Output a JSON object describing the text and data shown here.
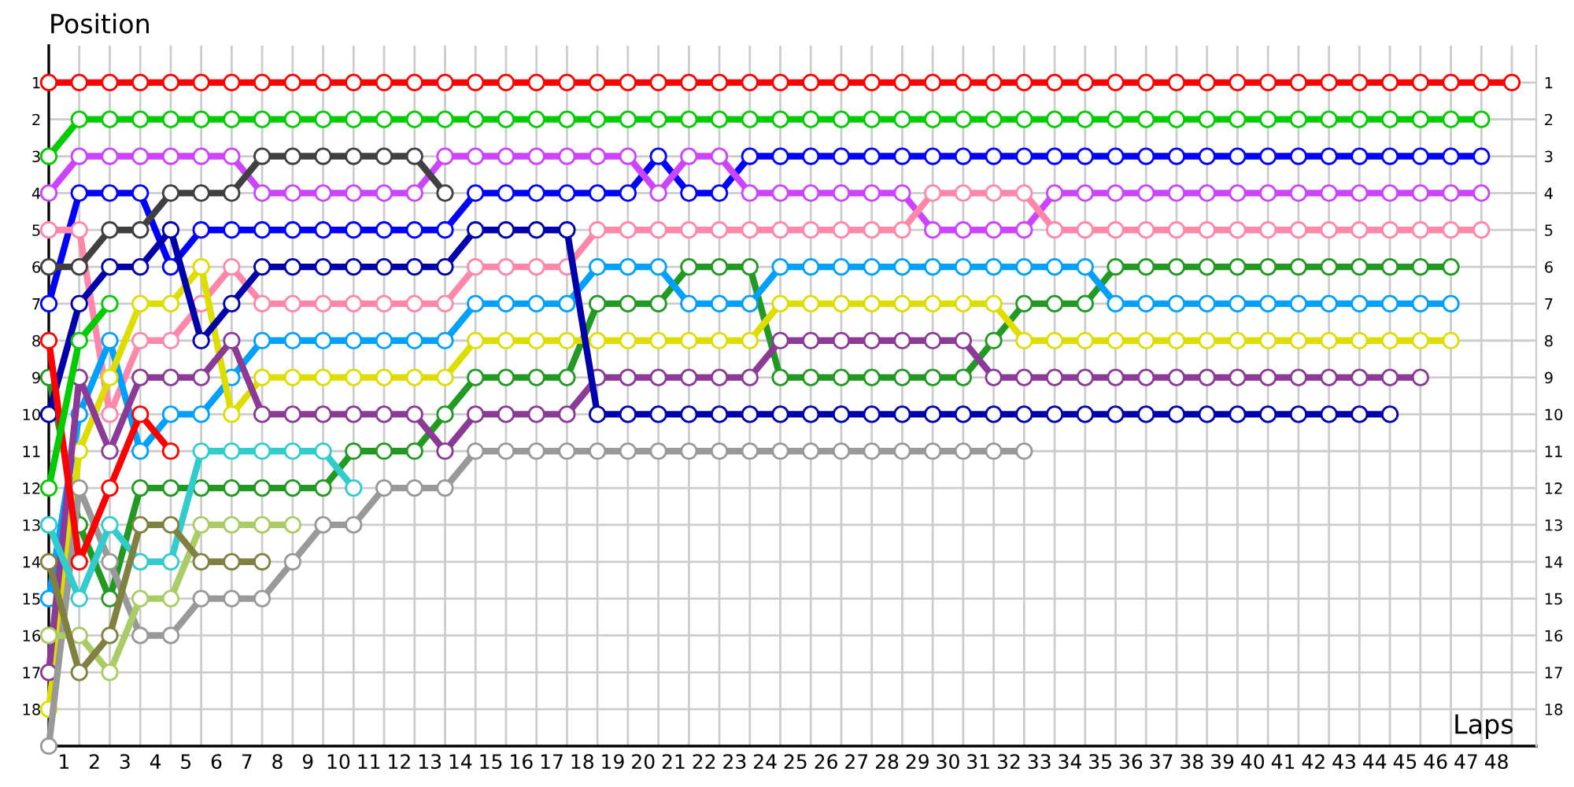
{
  "chart_data": {
    "type": "line",
    "xlabel": "Laps",
    "ylabel": "Position",
    "marker": "circle",
    "grid": true,
    "legend": false,
    "xlim": [
      0,
      48.8
    ],
    "ylim": [
      19,
      0
    ],
    "y2lim": [
      19,
      0
    ],
    "xticks": [
      {
        "value": 0.5,
        "label": "1"
      },
      {
        "value": 1.5,
        "label": "2"
      },
      {
        "value": 2.5,
        "label": "3"
      },
      {
        "value": 3.5,
        "label": "4"
      },
      {
        "value": 4.5,
        "label": "5"
      },
      {
        "value": 5.5,
        "label": "6"
      },
      {
        "value": 6.5,
        "label": "7"
      },
      {
        "value": 7.5,
        "label": "8"
      },
      {
        "value": 8.5,
        "label": "9"
      },
      {
        "value": 9.5,
        "label": "10"
      },
      {
        "value": 10.5,
        "label": "11"
      },
      {
        "value": 11.5,
        "label": "12"
      },
      {
        "value": 12.5,
        "label": "13"
      },
      {
        "value": 13.5,
        "label": "14"
      },
      {
        "value": 14.5,
        "label": "15"
      },
      {
        "value": 15.5,
        "label": "16"
      },
      {
        "value": 16.5,
        "label": "17"
      },
      {
        "value": 17.5,
        "label": "18"
      },
      {
        "value": 18.5,
        "label": "19"
      },
      {
        "value": 19.5,
        "label": "20"
      },
      {
        "value": 20.5,
        "label": "21"
      },
      {
        "value": 21.5,
        "label": "22"
      },
      {
        "value": 22.5,
        "label": "23"
      },
      {
        "value": 23.5,
        "label": "24"
      },
      {
        "value": 24.5,
        "label": "25"
      },
      {
        "value": 25.5,
        "label": "26"
      },
      {
        "value": 26.5,
        "label": "27"
      },
      {
        "value": 27.5,
        "label": "28"
      },
      {
        "value": 28.5,
        "label": "29"
      },
      {
        "value": 29.5,
        "label": "30"
      },
      {
        "value": 30.5,
        "label": "31"
      },
      {
        "value": 31.5,
        "label": "32"
      },
      {
        "value": 32.5,
        "label": "33"
      },
      {
        "value": 33.5,
        "label": "34"
      },
      {
        "value": 34.5,
        "label": "35"
      },
      {
        "value": 35.5,
        "label": "36"
      },
      {
        "value": 36.5,
        "label": "37"
      },
      {
        "value": 37.5,
        "label": "38"
      },
      {
        "value": 38.5,
        "label": "39"
      },
      {
        "value": 39.5,
        "label": "40"
      },
      {
        "value": 40.5,
        "label": "41"
      },
      {
        "value": 41.5,
        "label": "42"
      },
      {
        "value": 42.5,
        "label": "43"
      },
      {
        "value": 43.5,
        "label": "44"
      },
      {
        "value": 44.5,
        "label": "45"
      },
      {
        "value": 45.5,
        "label": "46"
      },
      {
        "value": 46.5,
        "label": "47"
      },
      {
        "value": 47.5,
        "label": "48"
      }
    ],
    "yticks": [
      1,
      2,
      3,
      4,
      5,
      6,
      7,
      8,
      9,
      10,
      11,
      12,
      13,
      14,
      15,
      16,
      17,
      18
    ],
    "y2ticks": [
      1,
      2,
      3,
      4,
      5,
      6,
      7,
      8,
      9,
      10,
      11,
      12,
      13,
      14,
      15,
      16,
      17,
      18
    ],
    "series": [
      {
        "color": "#ff0000",
        "x": [
          0,
          1,
          2,
          3,
          4,
          5,
          6,
          7,
          8,
          9,
          10,
          11,
          12,
          13,
          14,
          15,
          16,
          17,
          18,
          19,
          20,
          21,
          22,
          23,
          24,
          25,
          26,
          27,
          28,
          29,
          30,
          31,
          32,
          33,
          34,
          35,
          36,
          37,
          38,
          39,
          40,
          41,
          42,
          43,
          44,
          45,
          46,
          47,
          48
        ],
        "values": [
          1,
          1,
          1,
          1,
          1,
          1,
          1,
          1,
          1,
          1,
          1,
          1,
          1,
          1,
          1,
          1,
          1,
          1,
          1,
          1,
          1,
          1,
          1,
          1,
          1,
          1,
          1,
          1,
          1,
          1,
          1,
          1,
          1,
          1,
          1,
          1,
          1,
          1,
          1,
          1,
          1,
          1,
          1,
          1,
          1,
          1,
          1,
          1,
          1
        ]
      },
      {
        "color": "#00cc00",
        "x": [
          0,
          1,
          2,
          3,
          4,
          5,
          6,
          7,
          8,
          9,
          10,
          11,
          12,
          13,
          14,
          15,
          16,
          17,
          18,
          19,
          20,
          21,
          22,
          23,
          24,
          25,
          26,
          27,
          28,
          29,
          30,
          31,
          32,
          33,
          34,
          35,
          36,
          37,
          38,
          39,
          40,
          41,
          42,
          43,
          44,
          45,
          46,
          47
        ],
        "values": [
          3,
          2,
          2,
          2,
          2,
          2,
          2,
          2,
          2,
          2,
          2,
          2,
          2,
          2,
          2,
          2,
          2,
          2,
          2,
          2,
          2,
          2,
          2,
          2,
          2,
          2,
          2,
          2,
          2,
          2,
          2,
          2,
          2,
          2,
          2,
          2,
          2,
          2,
          2,
          2,
          2,
          2,
          2,
          2,
          2,
          2,
          2,
          2
        ]
      },
      {
        "color": "#0000ff",
        "x": [
          0,
          1,
          2,
          3,
          4,
          5,
          6,
          7,
          8,
          9,
          10,
          11,
          12,
          13,
          14,
          15,
          16,
          17,
          18,
          19,
          20,
          21,
          22,
          23,
          24,
          25,
          26,
          27,
          28,
          29,
          30,
          31,
          32,
          33,
          34,
          35,
          36,
          37,
          38,
          39,
          40,
          41,
          42,
          43,
          44,
          45,
          46,
          47
        ],
        "values": [
          7,
          4,
          4,
          4,
          6,
          5,
          5,
          5,
          5,
          5,
          5,
          5,
          5,
          5,
          4,
          4,
          4,
          4,
          4,
          4,
          3,
          4,
          4,
          3,
          3,
          3,
          3,
          3,
          3,
          3,
          3,
          3,
          3,
          3,
          3,
          3,
          3,
          3,
          3,
          3,
          3,
          3,
          3,
          3,
          3,
          3,
          3,
          3
        ]
      },
      {
        "color": "#cc44ff",
        "x": [
          0,
          1,
          2,
          3,
          4,
          5,
          6,
          7,
          8,
          9,
          10,
          11,
          12,
          13,
          14,
          15,
          16,
          17,
          18,
          19,
          20,
          21,
          22,
          23,
          24,
          25,
          26,
          27,
          28,
          29,
          30,
          31,
          32,
          33,
          34,
          35,
          36,
          37,
          38,
          39,
          40,
          41,
          42,
          43,
          44,
          45,
          46,
          47
        ],
        "values": [
          4,
          3,
          3,
          3,
          3,
          3,
          3,
          4,
          4,
          4,
          4,
          4,
          4,
          3,
          3,
          3,
          3,
          3,
          3,
          3,
          4,
          3,
          3,
          4,
          4,
          4,
          4,
          4,
          4,
          5,
          5,
          5,
          5,
          4,
          4,
          4,
          4,
          4,
          4,
          4,
          4,
          4,
          4,
          4,
          4,
          4,
          4,
          4
        ]
      },
      {
        "color": "#ff88aa",
        "x": [
          0,
          1,
          2,
          3,
          4,
          5,
          6,
          7,
          8,
          9,
          10,
          11,
          12,
          13,
          14,
          15,
          16,
          17,
          18,
          19,
          20,
          21,
          22,
          23,
          24,
          25,
          26,
          27,
          28,
          29,
          30,
          31,
          32,
          33,
          34,
          35,
          36,
          37,
          38,
          39,
          40,
          41,
          42,
          43,
          44,
          45,
          46,
          47
        ],
        "values": [
          5,
          5,
          10,
          8,
          8,
          7,
          6,
          7,
          7,
          7,
          7,
          7,
          7,
          7,
          6,
          6,
          6,
          6,
          5,
          5,
          5,
          5,
          5,
          5,
          5,
          5,
          5,
          5,
          5,
          4,
          4,
          4,
          4,
          5,
          5,
          5,
          5,
          5,
          5,
          5,
          5,
          5,
          5,
          5,
          5,
          5,
          5,
          5
        ]
      },
      {
        "color": "#229922",
        "x": [
          0,
          1,
          2,
          3,
          4,
          5,
          6,
          7,
          8,
          9,
          10,
          11,
          12,
          13,
          14,
          15,
          16,
          17,
          18,
          19,
          20,
          21,
          22,
          23,
          24,
          25,
          26,
          27,
          28,
          29,
          30,
          31,
          32,
          33,
          34,
          35,
          36,
          37,
          38,
          39,
          40,
          41,
          42,
          43,
          44,
          45,
          46
        ],
        "values": [
          9,
          13,
          15,
          12,
          12,
          12,
          12,
          12,
          12,
          12,
          11,
          11,
          11,
          10,
          9,
          9,
          9,
          9,
          7,
          7,
          7,
          6,
          6,
          6,
          9,
          9,
          9,
          9,
          9,
          9,
          9,
          8,
          7,
          7,
          7,
          6,
          6,
          6,
          6,
          6,
          6,
          6,
          6,
          6,
          6,
          6,
          6
        ]
      },
      {
        "color": "#00a0ff",
        "x": [
          0,
          1,
          2,
          3,
          4,
          5,
          6,
          7,
          8,
          9,
          10,
          11,
          12,
          13,
          14,
          15,
          16,
          17,
          18,
          19,
          20,
          21,
          22,
          23,
          24,
          25,
          26,
          27,
          28,
          29,
          30,
          31,
          32,
          33,
          34,
          35,
          36,
          37,
          38,
          39,
          40,
          41,
          42,
          43,
          44,
          45,
          46
        ],
        "values": [
          15,
          10,
          8,
          11,
          10,
          10,
          9,
          8,
          8,
          8,
          8,
          8,
          8,
          8,
          7,
          7,
          7,
          7,
          6,
          6,
          6,
          7,
          7,
          7,
          6,
          6,
          6,
          6,
          6,
          6,
          6,
          6,
          6,
          6,
          6,
          7,
          7,
          7,
          7,
          7,
          7,
          7,
          7,
          7,
          7,
          7,
          7
        ]
      },
      {
        "color": "#dddd00",
        "x": [
          0,
          1,
          2,
          3,
          4,
          5,
          6,
          7,
          8,
          9,
          10,
          11,
          12,
          13,
          14,
          15,
          16,
          17,
          18,
          19,
          20,
          21,
          22,
          23,
          24,
          25,
          26,
          27,
          28,
          29,
          30,
          31,
          32,
          33,
          34,
          35,
          36,
          37,
          38,
          39,
          40,
          41,
          42,
          43,
          44,
          45,
          46
        ],
        "values": [
          18,
          11,
          9,
          7,
          7,
          6,
          10,
          9,
          9,
          9,
          9,
          9,
          9,
          9,
          8,
          8,
          8,
          8,
          8,
          8,
          8,
          8,
          8,
          8,
          7,
          7,
          7,
          7,
          7,
          7,
          7,
          7,
          8,
          8,
          8,
          8,
          8,
          8,
          8,
          8,
          8,
          8,
          8,
          8,
          8,
          8,
          8
        ]
      },
      {
        "color": "#8b3a96",
        "x": [
          0,
          1,
          2,
          3,
          4,
          5,
          6,
          7,
          8,
          9,
          10,
          11,
          12,
          13,
          14,
          15,
          16,
          17,
          18,
          19,
          20,
          21,
          22,
          23,
          24,
          25,
          26,
          27,
          28,
          29,
          30,
          31,
          32,
          33,
          34,
          35,
          36,
          37,
          38,
          39,
          40,
          41,
          42,
          43,
          44,
          45
        ],
        "values": [
          17,
          9,
          11,
          9,
          9,
          9,
          8,
          10,
          10,
          10,
          10,
          10,
          10,
          11,
          10,
          10,
          10,
          10,
          9,
          9,
          9,
          9,
          9,
          9,
          8,
          8,
          8,
          8,
          8,
          8,
          8,
          9,
          9,
          9,
          9,
          9,
          9,
          9,
          9,
          9,
          9,
          9,
          9,
          9,
          9,
          9
        ]
      },
      {
        "color": "#0000aa",
        "x": [
          0,
          1,
          2,
          3,
          4,
          5,
          6,
          7,
          8,
          9,
          10,
          11,
          12,
          13,
          14,
          15,
          16,
          17,
          18,
          19,
          20,
          21,
          22,
          23,
          24,
          25,
          26,
          27,
          28,
          29,
          30,
          31,
          32,
          33,
          34,
          35,
          36,
          37,
          38,
          39,
          40,
          41,
          42,
          43,
          44
        ],
        "values": [
          10,
          7,
          6,
          6,
          5,
          8,
          7,
          6,
          6,
          6,
          6,
          6,
          6,
          6,
          5,
          5,
          5,
          5,
          10,
          10,
          10,
          10,
          10,
          10,
          10,
          10,
          10,
          10,
          10,
          10,
          10,
          10,
          10,
          10,
          10,
          10,
          10,
          10,
          10,
          10,
          10,
          10,
          10,
          10,
          10
        ]
      },
      {
        "color": "#999999",
        "x": [
          0,
          1,
          2,
          3,
          4,
          5,
          6,
          7,
          8,
          9,
          10,
          11,
          12,
          13,
          14,
          15,
          16,
          17,
          18,
          19,
          20,
          21,
          22,
          23,
          24,
          25,
          26,
          27,
          28,
          29,
          30,
          31,
          32
        ],
        "values": [
          19,
          12,
          14,
          16,
          16,
          15,
          15,
          15,
          14,
          13,
          13,
          12,
          12,
          12,
          11,
          11,
          11,
          11,
          11,
          11,
          11,
          11,
          11,
          11,
          11,
          11,
          11,
          11,
          11,
          11,
          11,
          11,
          11
        ]
      },
      {
        "color": "#404040",
        "x": [
          0,
          1,
          2,
          3,
          4,
          5,
          6,
          7,
          8,
          9,
          10,
          11,
          12,
          13
        ],
        "values": [
          6,
          6,
          5,
          5,
          4,
          4,
          4,
          3,
          3,
          3,
          3,
          3,
          3,
          4
        ]
      },
      {
        "color": "#33cccc",
        "x": [
          0,
          1,
          2,
          3,
          4,
          5,
          6,
          7,
          8,
          9,
          10
        ],
        "values": [
          13,
          15,
          13,
          14,
          14,
          11,
          11,
          11,
          11,
          11,
          12
        ]
      },
      {
        "color": "#aacc66",
        "x": [
          0,
          1,
          2,
          3,
          4,
          5,
          6,
          7,
          8
        ],
        "values": [
          16,
          16,
          17,
          15,
          15,
          13,
          13,
          13,
          13
        ]
      },
      {
        "color": "#808040",
        "x": [
          0,
          1,
          2,
          3,
          4,
          5,
          6,
          7
        ],
        "values": [
          14,
          17,
          16,
          13,
          13,
          14,
          14,
          14
        ]
      },
      {
        "color": "#ff0000",
        "x": [
          0,
          1,
          2,
          3,
          4
        ],
        "values": [
          8,
          14,
          12,
          10,
          11
        ]
      },
      {
        "color": "#00cc00",
        "x": [
          0,
          1,
          2
        ],
        "values": [
          12,
          8,
          7
        ]
      }
    ]
  }
}
